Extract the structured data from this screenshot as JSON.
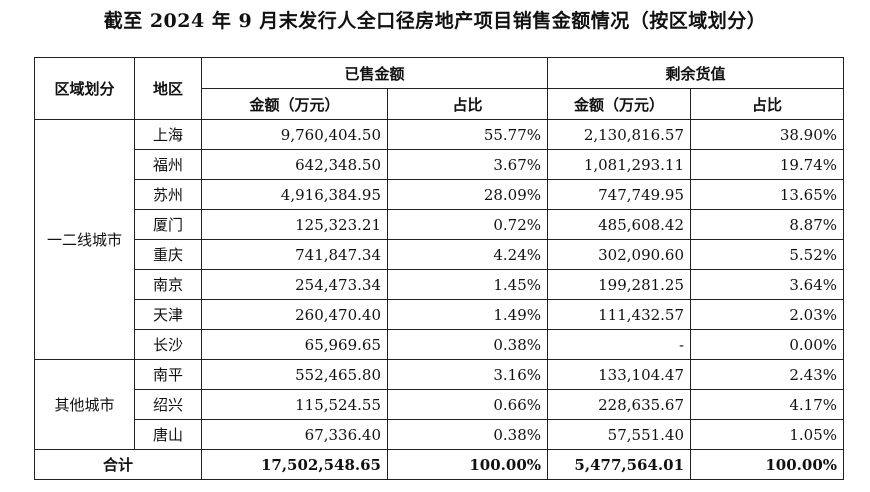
{
  "title": "截至 2024 年 9 月末发行人全口径房地产项目销售金额情况（按区域划分）",
  "headers": {
    "region": "区域划分",
    "area": "地区",
    "sold": "已售金额",
    "remaining": "剩余货值",
    "amount": "金额（万元）",
    "share": "占比"
  },
  "groups": [
    {
      "region": "一二线城市",
      "rows": [
        {
          "city": "上海",
          "sold_amount": "9,760,404.50",
          "sold_share": "55.77%",
          "remain_amount": "2,130,816.57",
          "remain_share": "38.90%"
        },
        {
          "city": "福州",
          "sold_amount": "642,348.50",
          "sold_share": "3.67%",
          "remain_amount": "1,081,293.11",
          "remain_share": "19.74%"
        },
        {
          "city": "苏州",
          "sold_amount": "4,916,384.95",
          "sold_share": "28.09%",
          "remain_amount": "747,749.95",
          "remain_share": "13.65%"
        },
        {
          "city": "厦门",
          "sold_amount": "125,323.21",
          "sold_share": "0.72%",
          "remain_amount": "485,608.42",
          "remain_share": "8.87%"
        },
        {
          "city": "重庆",
          "sold_amount": "741,847.34",
          "sold_share": "4.24%",
          "remain_amount": "302,090.60",
          "remain_share": "5.52%"
        },
        {
          "city": "南京",
          "sold_amount": "254,473.34",
          "sold_share": "1.45%",
          "remain_amount": "199,281.25",
          "remain_share": "3.64%"
        },
        {
          "city": "天津",
          "sold_amount": "260,470.40",
          "sold_share": "1.49%",
          "remain_amount": "111,432.57",
          "remain_share": "2.03%"
        },
        {
          "city": "长沙",
          "sold_amount": "65,969.65",
          "sold_share": "0.38%",
          "remain_amount": "-",
          "remain_share": "0.00%"
        }
      ]
    },
    {
      "region": "其他城市",
      "rows": [
        {
          "city": "南平",
          "sold_amount": "552,465.80",
          "sold_share": "3.16%",
          "remain_amount": "133,104.47",
          "remain_share": "2.43%"
        },
        {
          "city": "绍兴",
          "sold_amount": "115,524.55",
          "sold_share": "0.66%",
          "remain_amount": "228,635.67",
          "remain_share": "4.17%"
        },
        {
          "city": "唐山",
          "sold_amount": "67,336.40",
          "sold_share": "0.38%",
          "remain_amount": "57,551.40",
          "remain_share": "1.05%"
        }
      ]
    }
  ],
  "total": {
    "label": "合计",
    "sold_amount": "17,502,548.65",
    "sold_share": "100.00%",
    "remain_amount": "5,477,564.01",
    "remain_share": "100.00%"
  }
}
